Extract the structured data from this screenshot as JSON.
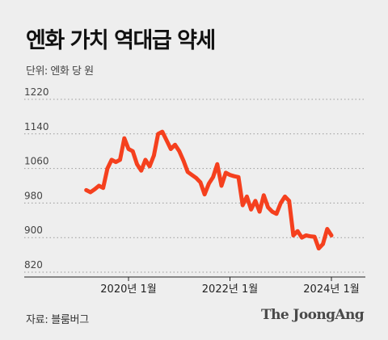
{
  "header": {
    "title": "엔화 가치 역대급 약세",
    "unit_label": "단위: 엔화 당 원"
  },
  "footer": {
    "source": "자료: 블룸버그",
    "brand": "The JoongAng"
  },
  "colors": {
    "line": "#f5401e",
    "grid": "#9a9a9a",
    "background": "#eeeeee",
    "text": "#444444"
  },
  "chart_data": {
    "type": "line",
    "title": "엔화 가치 역대급 약세",
    "xlabel": "",
    "ylabel": "",
    "ylim": [
      820,
      1220
    ],
    "yticks": [
      820,
      900,
      980,
      1060,
      1140,
      1220
    ],
    "xtick_labels": [
      "2020년 1월",
      "2022년 1월",
      "2024년 1월"
    ],
    "xtick_dates": [
      "2020-01",
      "2022-01",
      "2024-01"
    ],
    "grid": "horizontal dotted",
    "series": [
      {
        "values": [
          [
            "2019-03",
            1010
          ],
          [
            "2019-04",
            1005
          ],
          [
            "2019-05",
            1012
          ],
          [
            "2019-06",
            1020
          ],
          [
            "2019-07",
            1015
          ],
          [
            "2019-08",
            1060
          ],
          [
            "2019-09",
            1080
          ],
          [
            "2019-10",
            1075
          ],
          [
            "2019-11",
            1080
          ],
          [
            "2019-12",
            1130
          ],
          [
            "2020-01",
            1105
          ],
          [
            "2020-02",
            1100
          ],
          [
            "2020-03",
            1070
          ],
          [
            "2020-04",
            1055
          ],
          [
            "2020-05",
            1080
          ],
          [
            "2020-06",
            1065
          ],
          [
            "2020-07",
            1090
          ],
          [
            "2020-08",
            1140
          ],
          [
            "2020-09",
            1145
          ],
          [
            "2020-10",
            1125
          ],
          [
            "2020-11",
            1105
          ],
          [
            "2020-12",
            1115
          ],
          [
            "2021-01",
            1100
          ],
          [
            "2021-02",
            1078
          ],
          [
            "2021-03",
            1052
          ],
          [
            "2021-04",
            1045
          ],
          [
            "2021-05",
            1038
          ],
          [
            "2021-06",
            1028
          ],
          [
            "2021-07",
            1000
          ],
          [
            "2021-08",
            1025
          ],
          [
            "2021-09",
            1040
          ],
          [
            "2021-10",
            1070
          ],
          [
            "2021-11",
            1020
          ],
          [
            "2021-12",
            1050
          ],
          [
            "2022-01",
            1045
          ],
          [
            "2022-02",
            1042
          ],
          [
            "2022-03",
            1040
          ],
          [
            "2022-04",
            975
          ],
          [
            "2022-05",
            995
          ],
          [
            "2022-06",
            965
          ],
          [
            "2022-07",
            985
          ],
          [
            "2022-08",
            960
          ],
          [
            "2022-09",
            998
          ],
          [
            "2022-10",
            970
          ],
          [
            "2022-11",
            960
          ],
          [
            "2022-12",
            955
          ],
          [
            "2023-01",
            980
          ],
          [
            "2023-02",
            995
          ],
          [
            "2023-03",
            985
          ],
          [
            "2023-04",
            905
          ],
          [
            "2023-05",
            915
          ],
          [
            "2023-06",
            900
          ],
          [
            "2023-07",
            905
          ],
          [
            "2023-08",
            903
          ],
          [
            "2023-09",
            902
          ],
          [
            "2023-10",
            875
          ],
          [
            "2023-11",
            885
          ],
          [
            "2023-12",
            920
          ],
          [
            "2024-01",
            905
          ]
        ]
      }
    ]
  }
}
